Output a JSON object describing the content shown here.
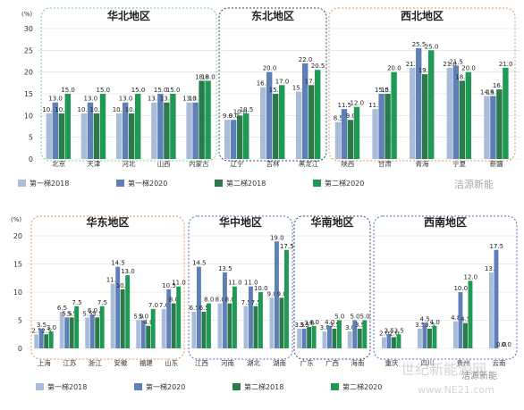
{
  "colors": {
    "s1": "#a9bddb",
    "s2": "#5f80b6",
    "s3": "#2a7a4a",
    "s4": "#1f9a55",
    "grid": "#d9d9d9",
    "box_green": "#7bc79b",
    "box_navy": "#34406e",
    "box_orange": "#d99a5a",
    "box_blue": "#4f6fb2"
  },
  "watermarks": [
    "洁源新能",
    "世纪新能源网",
    "www.NE21.com",
    "洁源新能"
  ],
  "chart_data": [
    {
      "type": "bar",
      "ylabel": "(%)",
      "ylim": [
        0,
        30
      ],
      "yticks": [
        0,
        5,
        10,
        15,
        20,
        25,
        30
      ],
      "regions": [
        {
          "title": "华北地区",
          "box": "box_green",
          "categories": [
            "北京",
            "天津",
            "河北",
            "山西",
            "内蒙古"
          ]
        },
        {
          "title": "东北地区",
          "box": "box_navy",
          "categories": [
            "辽宁",
            "吉林",
            "黑龙江"
          ]
        },
        {
          "title": "西北地区",
          "box": "box_orange",
          "categories": [
            "陕西",
            "甘肃",
            "青海",
            "宁夏",
            "新疆"
          ]
        }
      ],
      "categories": [
        "北京",
        "天津",
        "河北",
        "山西",
        "内蒙古",
        "辽宁",
        "吉林",
        "黑龙江",
        "陕西",
        "甘肃",
        "青海",
        "宁夏",
        "新疆"
      ],
      "series": [
        {
          "name": "第一梯2018",
          "color_key": "s1",
          "values": [
            10.5,
            10.5,
            10.5,
            13.0,
            13.0,
            9.0,
            16.5,
            15.5,
            8.5,
            11.5,
            21.0,
            21.0,
            14.5
          ]
        },
        {
          "name": "第一梯2020",
          "color_key": "s2",
          "values": [
            13.0,
            13.0,
            13.0,
            15.0,
            13.0,
            9.0,
            20.0,
            22.0,
            11.5,
            15.0,
            25.5,
            21.5,
            14.5
          ]
        },
        {
          "name": "第二梯2018",
          "color_key": "s3",
          "values": [
            10.5,
            10.5,
            10.5,
            13.0,
            18.0,
            10.0,
            15.0,
            17.0,
            9.0,
            15.0,
            19.5,
            18.0,
            16.0
          ]
        },
        {
          "name": "第二梯2020",
          "color_key": "s4",
          "values": [
            15.0,
            15.0,
            15.0,
            15.0,
            18.0,
            10.5,
            17.0,
            20.5,
            12.0,
            20.0,
            25.0,
            20.0,
            21.0
          ]
        }
      ]
    },
    {
      "type": "bar",
      "ylabel": "(%)",
      "ylim": [
        0,
        20
      ],
      "yticks": [
        0,
        5,
        10,
        15,
        20
      ],
      "regions": [
        {
          "title": "华东地区",
          "box": "box_orange",
          "categories": [
            "上海",
            "江苏",
            "浙江",
            "安徽",
            "福建",
            "山东"
          ]
        },
        {
          "title": "华中地区",
          "box": "box_blue",
          "categories": [
            "江西",
            "河南",
            "湖北",
            "湖南"
          ]
        },
        {
          "title": "华南地区",
          "box": "box_navy",
          "categories": [
            "广东",
            "广西",
            "海南"
          ]
        },
        {
          "title": "西南地区",
          "box": "box_blue",
          "categories": [
            "重庆",
            "四川",
            "贵州",
            "云南"
          ]
        }
      ],
      "categories": [
        "上海",
        "江苏",
        "浙江",
        "安徽",
        "福建",
        "山东",
        "江西",
        "河南",
        "湖北",
        "湖南",
        "广东",
        "广西",
        "海南",
        "重庆",
        "四川",
        "贵州",
        "云南"
      ],
      "series": [
        {
          "name": "第一梯2018",
          "color_key": "s1",
          "values": [
            2.5,
            6.5,
            5.5,
            11.5,
            5.0,
            7.0,
            6.5,
            8.0,
            7.5,
            9.0,
            3.5,
            3.0,
            3.0,
            2.0,
            3.5,
            4.8,
            13.5
          ]
        },
        {
          "name": "第一梯2020",
          "color_key": "s2",
          "values": [
            3.5,
            5.5,
            6.0,
            14.5,
            5.0,
            10.5,
            14.5,
            13.5,
            11.0,
            19.0,
            3.5,
            4.0,
            5.0,
            2.5,
            4.5,
            10.0,
            17.5
          ]
        },
        {
          "name": "第二梯2018",
          "color_key": "s3",
          "values": [
            2.5,
            5.5,
            5.5,
            10.5,
            4.0,
            8.0,
            6.5,
            8.0,
            7.5,
            9.0,
            3.8,
            3.5,
            3.5,
            2.0,
            3.5,
            4.5,
            0.0
          ]
        },
        {
          "name": "第二梯2020",
          "color_key": "s4",
          "values": [
            3.0,
            7.5,
            7.5,
            13.0,
            7.0,
            11.0,
            8.0,
            11.0,
            10.0,
            17.5,
            4.0,
            5.0,
            5.0,
            2.5,
            4.0,
            12.0,
            0.0
          ]
        }
      ]
    }
  ]
}
